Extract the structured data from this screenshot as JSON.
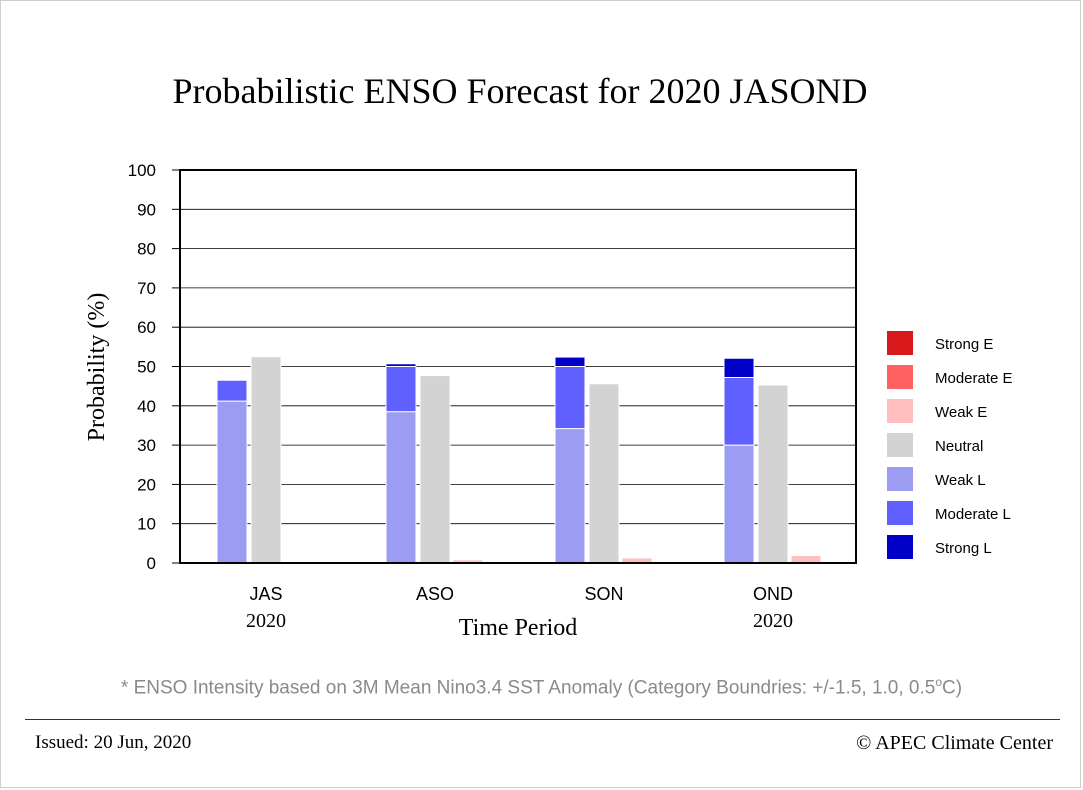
{
  "chart_data": {
    "type": "bar",
    "title": "Probabilistic ENSO Forecast for 2020 JASOND",
    "xlabel": "Time Period",
    "ylabel": "Probability (%)",
    "ylim": [
      0,
      100
    ],
    "yticks": [
      "0",
      "10",
      "20",
      "30",
      "40",
      "50",
      "60",
      "70",
      "80",
      "90",
      "100"
    ],
    "categories": [
      "JAS",
      "ASO",
      "SON",
      "OND"
    ],
    "category_years": [
      "2020",
      "",
      "",
      "2020"
    ],
    "grid": true,
    "legend_position": "right",
    "series": [
      {
        "name": "Strong E",
        "color": "#d7191c",
        "values": [
          0,
          0,
          0,
          0
        ]
      },
      {
        "name": "Moderate E",
        "color": "#ff6161",
        "values": [
          0,
          0,
          0,
          0
        ]
      },
      {
        "name": "Weak E",
        "color": "#ffbfbf",
        "values": [
          0.3,
          0.8,
          1.3,
          1.9
        ]
      },
      {
        "name": "Neutral",
        "color": "#d3d3d3",
        "values": [
          52.5,
          47.7,
          45.6,
          45.3
        ]
      },
      {
        "name": "Weak L",
        "color": "#9c9cf2",
        "values": [
          41.2,
          38.5,
          34.2,
          30.0
        ]
      },
      {
        "name": "Moderate L",
        "color": "#6060ff",
        "values": [
          5.3,
          11.5,
          15.8,
          17.2
        ]
      },
      {
        "name": "Strong L",
        "color": "#0000c8",
        "values": [
          0,
          0.7,
          2.4,
          4.9
        ]
      }
    ],
    "stacks": {
      "la_nina": [
        "Weak L",
        "Moderate L",
        "Strong L"
      ],
      "neutral": [
        "Neutral"
      ],
      "el_nino": [
        "Weak E",
        "Moderate E",
        "Strong E"
      ]
    }
  },
  "footnote": "* ENSO Intensity based on 3M Mean Nino3.4 SST Anomaly (Category Boundries: +/-1.5, 1.0, 0.5",
  "footnote_degree": "o",
  "footnote_unit": "C)",
  "issued": "Issued: 20 Jun, 2020",
  "credit": "© APEC Climate Center"
}
